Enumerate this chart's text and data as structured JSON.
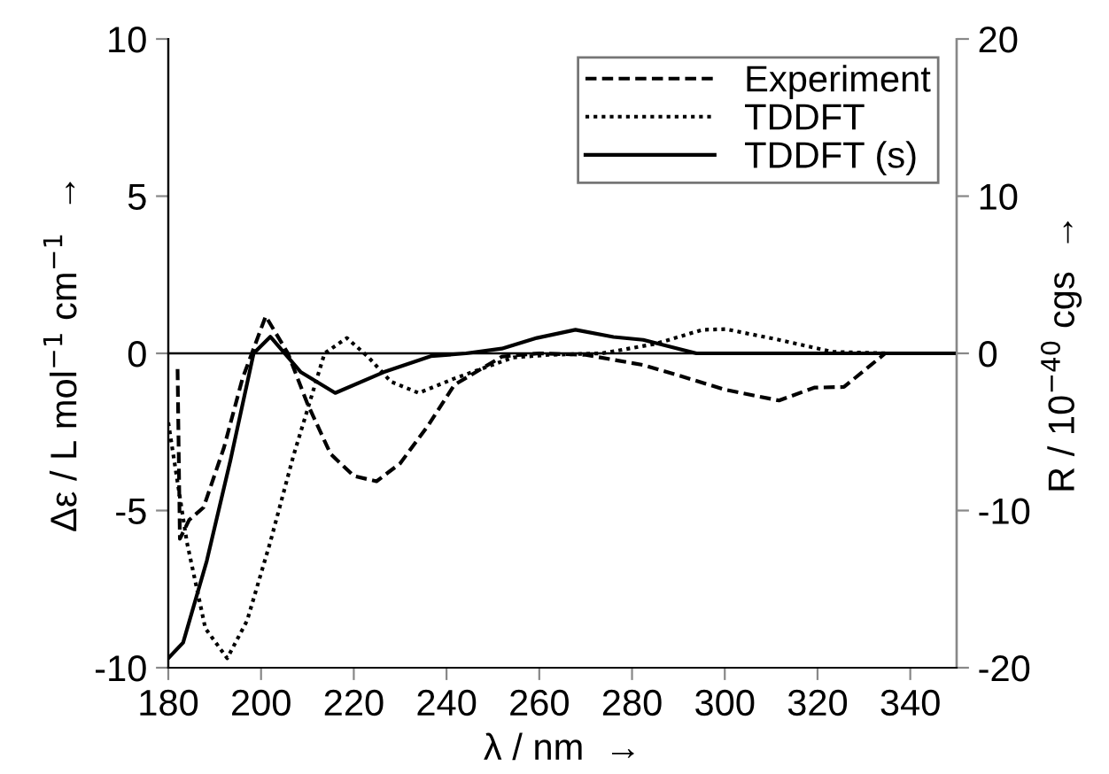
{
  "chart_data": {
    "type": "line",
    "xlabel": "λ / nm  →",
    "ylabel": "Δε / L mol$^{−1}$ cm$^{−1}$  →",
    "y2label": "R / 10$^{−40}$ cgs  →",
    "xlim": [
      180,
      350
    ],
    "xticks": [
      180,
      200,
      220,
      240,
      260,
      280,
      300,
      320,
      340
    ],
    "ylim": [
      -10,
      10
    ],
    "yticks": [
      -10,
      -5,
      0,
      5,
      10
    ],
    "y2lim": [
      -20,
      20
    ],
    "y2ticks": [
      -20,
      -10,
      0,
      10,
      20
    ],
    "legend": "top right",
    "grid": false,
    "ref_lines": [
      {
        "axis": "y",
        "value": 0,
        "color": "#000000",
        "line_style": "solid"
      }
    ],
    "series": [
      {
        "name": "Experiment",
        "color": "#000000",
        "line_style": "dashed",
        "axis": "y",
        "x": [
          182,
          182.5,
          184.5,
          187.6,
          192,
          196,
          201,
          205.8,
          210,
          215,
          220,
          224.9,
          230,
          236,
          241.7,
          252,
          260,
          270,
          282.4,
          290,
          300.2,
          311.7,
          319.3,
          325.7,
          334.6,
          350
        ],
        "values": [
          -0.5,
          -5.9,
          -5.3,
          -4.9,
          -3.0,
          -0.8,
          1.18,
          0,
          -1.6,
          -3.2,
          -3.9,
          -4.07,
          -3.5,
          -2.3,
          -1.0,
          -0.1,
          0,
          -0.05,
          -0.37,
          -0.7,
          -1.16,
          -1.5,
          -1.09,
          -1.07,
          0,
          0
        ]
      },
      {
        "name": "TDDFT",
        "color": "#000000",
        "line_style": "dotted",
        "axis": "y2",
        "x": [
          180,
          184,
          188,
          192.7,
          197,
          202,
          207,
          213.7,
          218.5,
          223,
          228,
          234,
          241.7,
          254.4,
          262,
          273.5,
          285,
          295.2,
          300.2,
          311.7,
          323.2,
          335,
          350
        ],
        "values": [
          -4.4,
          -12,
          -17.5,
          -19.4,
          -17,
          -12,
          -6.5,
          0,
          0.98,
          -0.2,
          -1.8,
          -2.52,
          -1.6,
          -0.26,
          -0.1,
          0,
          0.6,
          1.5,
          1.54,
          0.86,
          0.1,
          0,
          0
        ]
      },
      {
        "name": "TDDFT (s)",
        "color": "#000000",
        "line_style": "solid",
        "axis": "y2",
        "x": [
          180,
          183.2,
          188.3,
          193.4,
          198.4,
          202,
          208.6,
          216,
          226.4,
          236.6,
          244.2,
          251.9,
          259.5,
          267.8,
          276,
          282.4,
          293.9,
          310,
          350
        ],
        "values": [
          -19.4,
          -18.4,
          -13.2,
          -6.8,
          0,
          1.06,
          -1.2,
          -2.52,
          -1.2,
          -0.18,
          0,
          0.3,
          0.98,
          1.5,
          1.04,
          0.86,
          0,
          0,
          0
        ]
      }
    ]
  }
}
